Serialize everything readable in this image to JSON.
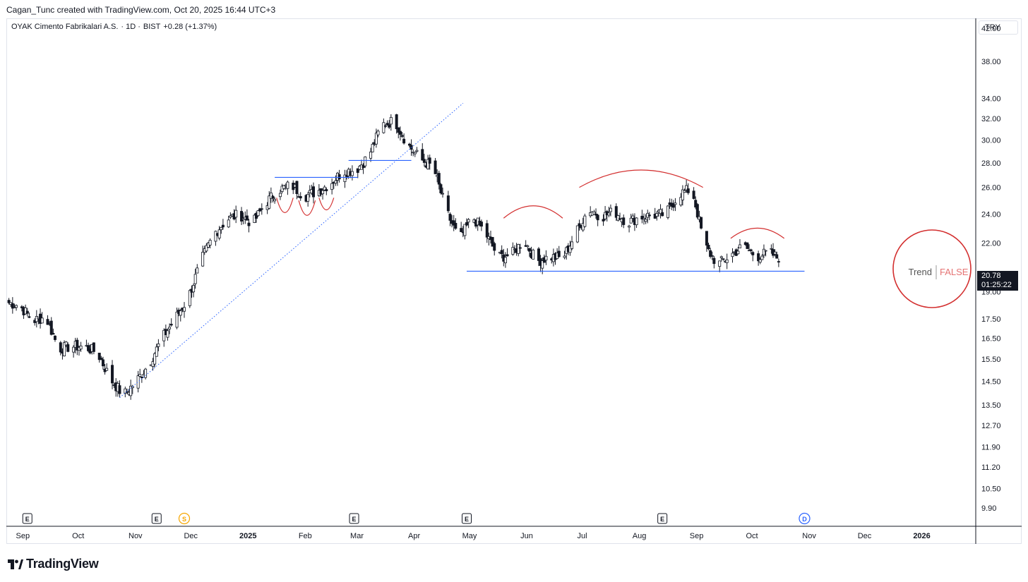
{
  "header": {
    "credit": "Cagan_Tunc created with TradingView.com, Oct 20, 2025 16:44 UTC+3",
    "symbol_name": "OYAK Cimento Fabrikalari A.S.",
    "interval": "· 1D ·",
    "exchange": "BIST",
    "change": "+0.28 (+1.37%)",
    "currency": "TRY"
  },
  "price_label": {
    "price": "20.78",
    "countdown": "01:25:22"
  },
  "annotation": {
    "trend_label": "Trend",
    "trend_value": "FALSE"
  },
  "events": [
    {
      "type": "E",
      "at": "Sep 5 2024"
    },
    {
      "type": "E",
      "at": "Nov 14 2024"
    },
    {
      "type": "S",
      "at": "Nov 29 2024"
    },
    {
      "type": "E",
      "at": "Mar 1 2025"
    },
    {
      "type": "E",
      "at": "May 1 2025"
    },
    {
      "type": "E",
      "at": "Aug 15 2025"
    },
    {
      "type": "D",
      "at": "Oct 31 2025"
    }
  ],
  "brand": "TradingView",
  "colors": {
    "candle_up": "#ffffff",
    "candle_down": "#131722",
    "drawing_blue": "#2962ff",
    "drawing_red": "#d32f2f",
    "event_orange": "#f7a600"
  },
  "chart_data": {
    "type": "candlestick",
    "title": "OYAK Cimento Fabrikalari A.S. · 1D · BIST",
    "x_ticks": [
      "Sep",
      "Oct",
      "Nov",
      "Dec",
      "2025",
      "Feb",
      "Mar",
      "Apr",
      "May",
      "Jun",
      "Jul",
      "Aug",
      "Sep",
      "Oct",
      "Nov",
      "Dec",
      "2026"
    ],
    "y_ticks": [
      "42.00",
      "38.00",
      "34.00",
      "32.00",
      "30.00",
      "28.00",
      "26.00",
      "24.00",
      "22.00",
      "19.00",
      "17.50",
      "16.50",
      "15.50",
      "14.50",
      "13.50",
      "12.70",
      "11.90",
      "11.20",
      "10.50",
      "9.90"
    ],
    "y_scale": "log",
    "ylim": [
      9.9,
      42
    ],
    "xlim": [
      "Aug 25 2024",
      "Jan 31 2026"
    ],
    "series_points": [
      [
        "Aug 25 2024",
        18.4
      ],
      [
        "Sep 1 2024",
        18.2
      ],
      [
        "Sep 8 2024",
        17.4
      ],
      [
        "Sep 15 2024",
        17.6
      ],
      [
        "Sep 22 2024",
        16.0
      ],
      [
        "Sep 29 2024",
        16.1
      ],
      [
        "Oct 6 2024",
        16.1
      ],
      [
        "Oct 13 2024",
        15.8
      ],
      [
        "Oct 20 2024",
        14.6
      ],
      [
        "Oct 27 2024",
        13.9
      ],
      [
        "Nov 3 2024",
        14.5
      ],
      [
        "Nov 10 2024",
        15.3
      ],
      [
        "Nov 17 2024",
        16.5
      ],
      [
        "Nov 24 2024",
        17.5
      ],
      [
        "Dec 1 2024",
        18.6
      ],
      [
        "Dec 8 2024",
        20.8
      ],
      [
        "Dec 15 2024",
        22.6
      ],
      [
        "Dec 22 2024",
        23.6
      ],
      [
        "Dec 29 2024",
        24.0
      ],
      [
        "Jan 5 2025",
        23.3
      ],
      [
        "Jan 12 2025",
        24.8
      ],
      [
        "Jan 19 2025",
        25.8
      ],
      [
        "Jan 26 2025",
        26.2
      ],
      [
        "Feb 2 2025",
        25.3
      ],
      [
        "Feb 9 2025",
        25.7
      ],
      [
        "Feb 16 2025",
        26.3
      ],
      [
        "Feb 23 2025",
        27.3
      ],
      [
        "Mar 2 2025",
        27.4
      ],
      [
        "Mar 9 2025",
        28.6
      ],
      [
        "Mar 16 2025",
        31.4
      ],
      [
        "Mar 23 2025",
        31.8
      ],
      [
        "Mar 30 2025",
        29.6
      ],
      [
        "Apr 6 2025",
        28.3
      ],
      [
        "Apr 13 2025",
        27.6
      ],
      [
        "Apr 20 2025",
        24.2
      ],
      [
        "Apr 27 2025",
        22.2
      ],
      [
        "May 4 2025",
        23.8
      ],
      [
        "May 11 2025",
        22.7
      ],
      [
        "May 18 2025",
        21.1
      ],
      [
        "May 25 2025",
        21.2
      ],
      [
        "Jun 1 2025",
        22.2
      ],
      [
        "Jun 8 2025",
        20.8
      ],
      [
        "Jun 15 2025",
        21.1
      ],
      [
        "Jun 22 2025",
        21.0
      ],
      [
        "Jun 29 2025",
        22.6
      ],
      [
        "Jul 6 2025",
        24.4
      ],
      [
        "Jul 13 2025",
        23.8
      ],
      [
        "Jul 20 2025",
        24.2
      ],
      [
        "Jul 27 2025",
        23.4
      ],
      [
        "Aug 3 2025",
        23.8
      ],
      [
        "Aug 10 2025",
        23.9
      ],
      [
        "Aug 17 2025",
        24.0
      ],
      [
        "Aug 24 2025",
        25.5
      ],
      [
        "Aug 31 2025",
        25.9
      ],
      [
        "Sep 7 2025",
        21.8
      ],
      [
        "Sep 14 2025",
        20.6
      ],
      [
        "Sep 21 2025",
        21.2
      ],
      [
        "Sep 28 2025",
        21.8
      ],
      [
        "Oct 5 2025",
        21.1
      ],
      [
        "Oct 12 2025",
        21.4
      ],
      [
        "Oct 19 2025",
        20.78
      ]
    ],
    "last_price": 20.78,
    "drawings": [
      {
        "kind": "support_line",
        "from": [
          "May 1 2025",
          20.2
        ],
        "to": [
          "Oct 31 2025",
          20.2
        ]
      },
      {
        "kind": "trendline_dotted",
        "from": [
          "Oct 25 2024",
          13.8
        ],
        "to": [
          "Apr 29 2025",
          33.5
        ]
      },
      {
        "kind": "resistance_line",
        "from": [
          "Jan 17 2025",
          26.8
        ],
        "to": [
          "Mar 3 2025",
          26.8
        ]
      },
      {
        "kind": "resistance_line",
        "from": [
          "Feb 26 2025",
          28.2
        ],
        "to": [
          "Apr 1 2025",
          28.2
        ]
      },
      {
        "kind": "arc",
        "shape": "dome",
        "from": [
          "May 21 2025",
          23.7
        ],
        "to": [
          "Jun 22 2025",
          23.7
        ],
        "peak": 24.6
      },
      {
        "kind": "arc",
        "shape": "dome",
        "from": [
          "Jul 1 2025",
          26.0
        ],
        "to": [
          "Sep 6 2025",
          26.0
        ],
        "peak": 27.4
      },
      {
        "kind": "arc",
        "shape": "dome",
        "from": [
          "Sep 21 2025",
          22.3
        ],
        "to": [
          "Oct 20 2025",
          22.3
        ],
        "peak": 23.0
      },
      {
        "kind": "arc",
        "shape": "cup",
        "from": [
          "Jan 18 2025",
          25.2
        ],
        "to": [
          "Jan 27 2025",
          25.2
        ],
        "trough": 24.1
      },
      {
        "kind": "arc",
        "shape": "cup",
        "from": [
          "Jan 30 2025",
          25.0
        ],
        "to": [
          "Feb 8 2025",
          25.0
        ],
        "trough": 23.9
      },
      {
        "kind": "arc",
        "shape": "cup",
        "from": [
          "Feb 10 2025",
          25.2
        ],
        "to": [
          "Feb 18 2025",
          25.2
        ],
        "trough": 24.3
      }
    ]
  }
}
